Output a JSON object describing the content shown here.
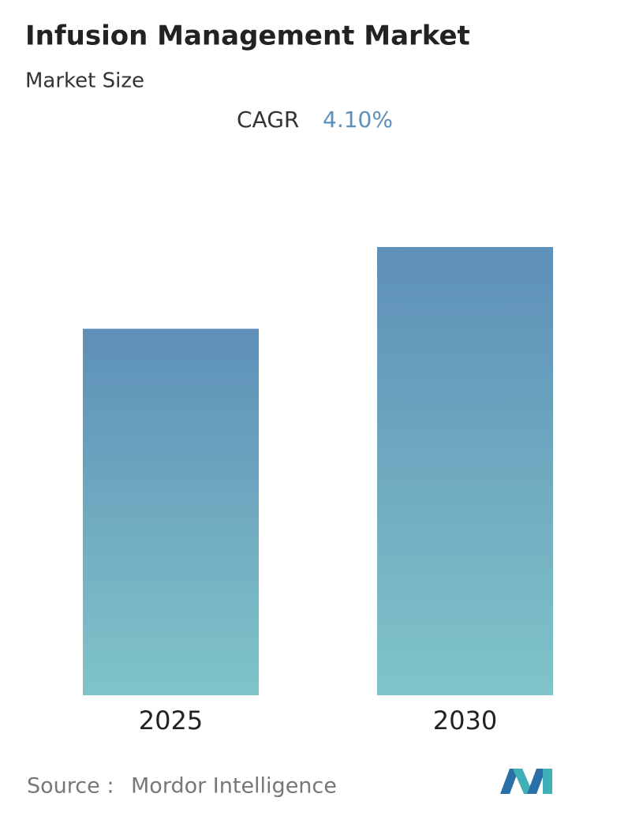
{
  "chart_data": {
    "type": "bar",
    "title": "Infusion Management Market",
    "subtitle": "Market Size",
    "cagr_label": "CAGR",
    "cagr_value": "4.10%",
    "categories": [
      "2025",
      "2030"
    ],
    "values": [
      100,
      122.3
    ],
    "color_top": "#5e8fb8",
    "color_bottom": "#80c4c9",
    "source_label": "Source :",
    "source": "Mordor Intelligence"
  }
}
